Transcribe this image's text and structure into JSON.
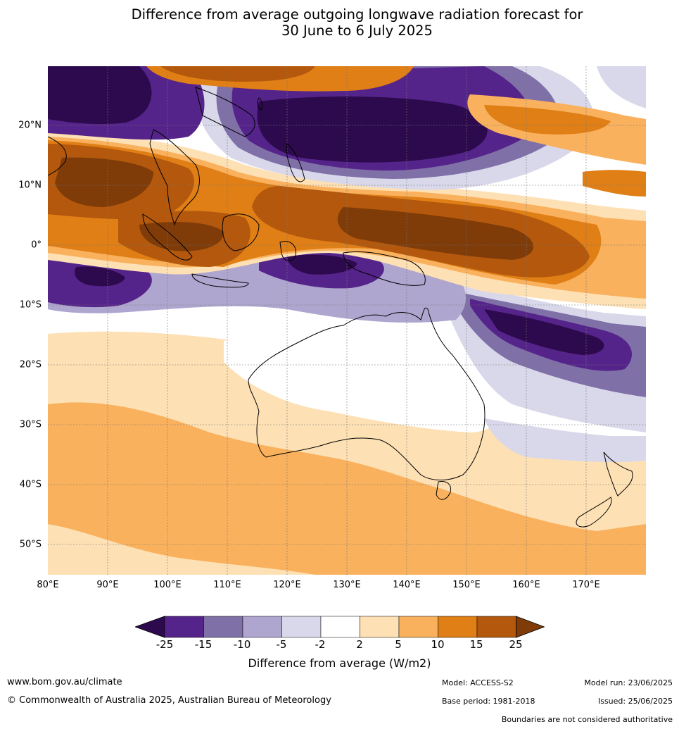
{
  "title_line1": "Difference from average outgoing longwave radiation forecast for",
  "title_line2": "30 June to 6 July 2025",
  "map": {
    "lat_labels": [
      "20°N",
      "10°N",
      "0°",
      "10°S",
      "20°S",
      "30°S",
      "40°S",
      "50°S"
    ],
    "lon_labels": [
      "80°E",
      "90°E",
      "100°E",
      "110°E",
      "120°E",
      "130°E",
      "140°E",
      "150°E",
      "160°E",
      "170°E"
    ]
  },
  "colorbar": {
    "tick_labels": [
      "-25",
      "-15",
      "-10",
      "-5",
      "-2",
      "2",
      "5",
      "10",
      "15",
      "25"
    ],
    "colors": [
      "#2d0a4d",
      "#55248a",
      "#8070a8",
      "#afa6cf",
      "#d9d8ea",
      "#ffffff",
      "#fde0b4",
      "#f9b15d",
      "#df7f16",
      "#b3580c",
      "#7f3b08"
    ],
    "label": "Difference from average (W/m2)"
  },
  "footer": {
    "url": "www.bom.gov.au/climate",
    "copyright": "© Commonwealth of Australia 2025, Australian Bureau of Meteorology",
    "model": "Model: ACCESS-S2",
    "base_period": "Base period: 1981-2018",
    "model_run": "Model run: 23/06/2025",
    "issued": "Issued: 25/06/2025",
    "disclaimer": "Boundaries are not considered authoritative"
  }
}
